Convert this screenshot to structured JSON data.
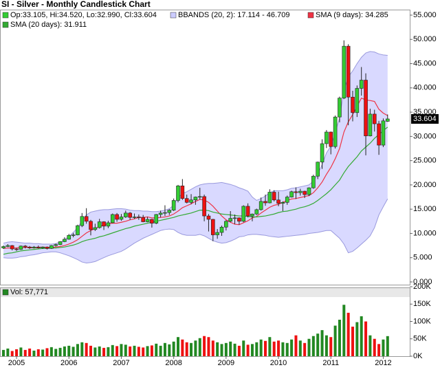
{
  "chart_data": {
    "type": "candlestick",
    "title": "SI - Silver - Monthly Candlestick Chart",
    "ohlc_label": "Op:33.105, Hi:34.520, Lo:32.990, Cl:33.604",
    "last_label": "33.604",
    "up_color": "#33cc33",
    "down_color": "#ee1111",
    "categories": [
      null,
      null,
      null,
      "2005",
      null,
      null,
      null,
      null,
      null,
      null,
      null,
      null,
      null,
      null,
      null,
      "2006",
      null,
      null,
      null,
      null,
      null,
      null,
      null,
      null,
      null,
      null,
      null,
      "2007",
      null,
      null,
      null,
      null,
      null,
      null,
      null,
      null,
      null,
      null,
      null,
      "2008",
      null,
      null,
      null,
      null,
      null,
      null,
      null,
      null,
      null,
      null,
      null,
      "2009",
      null,
      null,
      null,
      null,
      null,
      null,
      null,
      null,
      null,
      null,
      null,
      "2010",
      null,
      null,
      null,
      null,
      null,
      null,
      null,
      null,
      null,
      null,
      null,
      "2011",
      null,
      null,
      null,
      null,
      null,
      null,
      null,
      null,
      null,
      null,
      null,
      "2012",
      null
    ],
    "open": [
      7.0,
      7.3,
      7.5,
      6.8,
      6.7,
      7.4,
      7.2,
      7.0,
      7.2,
      7.0,
      7.2,
      6.9,
      7.5,
      7.7,
      8.3,
      8.8,
      9.6,
      9.7,
      11.6,
      13.5,
      12.5,
      10.8,
      11.2,
      12.4,
      11.5,
      12.2,
      13.9,
      12.9,
      13.4,
      14.2,
      13.3,
      13.4,
      13.3,
      12.4,
      12.9,
      12.1,
      13.9,
      14.2,
      14.3,
      14.8,
      16.8,
      19.8,
      17.2,
      16.4,
      16.9,
      17.5,
      17.6,
      13.6,
      12.9,
      9.7,
      10.2,
      11.3,
      12.5,
      13.1,
      13.2,
      12.5,
      15.6,
      13.6,
      14.0,
      14.9,
      16.6,
      16.3,
      18.5,
      16.9,
      16.2,
      16.4,
      17.5,
      18.6,
      18.4,
      18.7,
      18.0,
      19.4,
      21.8,
      24.7,
      28.5,
      30.9,
      27.9,
      34.0,
      37.9,
      48.6,
      38.1,
      34.9,
      39.9,
      41.6,
      30.1,
      34.6,
      32.6,
      28.2,
      33.105
    ],
    "high": [
      7.5,
      7.8,
      7.6,
      7.0,
      7.5,
      7.6,
      7.4,
      7.4,
      7.5,
      7.3,
      7.3,
      7.6,
      7.9,
      8.4,
      9.2,
      9.9,
      10.1,
      11.8,
      14.2,
      15.2,
      12.8,
      12.0,
      13.0,
      12.5,
      12.6,
      14.1,
      14.2,
      14.0,
      14.7,
      14.4,
      14.1,
      13.9,
      13.8,
      13.4,
      13.0,
      14.0,
      14.7,
      15.8,
      15.0,
      17.2,
      20.0,
      21.2,
      18.0,
      18.1,
      17.6,
      19.4,
      18.0,
      14.0,
      13.0,
      10.9,
      11.6,
      12.7,
      14.6,
      13.9,
      13.3,
      15.8,
      16.2,
      14.1,
      15.1,
      17.4,
      18.0,
      19.1,
      18.9,
      18.6,
      16.6,
      17.8,
      18.8,
      19.5,
      19.2,
      18.8,
      19.5,
      22.1,
      24.8,
      29.4,
      31.3,
      31.0,
      34.3,
      38.2,
      49.8,
      49.0,
      39.4,
      40.5,
      44.3,
      43.0,
      35.7,
      35.5,
      33.2,
      33.7,
      34.52
    ],
    "low": [
      6.8,
      7.2,
      6.5,
      6.4,
      6.6,
      6.9,
      6.8,
      6.9,
      6.9,
      6.8,
      6.7,
      6.8,
      7.3,
      7.6,
      8.2,
      8.7,
      9.2,
      9.6,
      11.3,
      12.0,
      9.6,
      10.5,
      11.0,
      10.7,
      11.1,
      12.1,
      12.4,
      12.6,
      13.2,
      12.8,
      13.0,
      12.8,
      12.3,
      12.3,
      11.2,
      11.9,
      13.3,
      13.6,
      13.8,
      14.6,
      16.4,
      16.9,
      16.2,
      16.0,
      15.9,
      17.0,
      12.5,
      10.4,
      8.4,
      8.9,
      9.5,
      10.6,
      12.3,
      11.9,
      11.8,
      12.3,
      13.3,
      12.5,
      13.8,
      14.7,
      15.7,
      16.2,
      16.6,
      15.6,
      14.6,
      15.9,
      17.4,
      17.1,
      17.8,
      17.3,
      17.7,
      19.2,
      21.2,
      23.3,
      27.6,
      26.3,
      27.5,
      32.9,
      37.7,
      32.3,
      33.1,
      34.0,
      38.4,
      26.1,
      30.0,
      31.0,
      26.2,
      27.8,
      32.99
    ],
    "close": [
      7.3,
      7.5,
      6.8,
      6.7,
      7.4,
      7.2,
      7.0,
      7.2,
      7.0,
      7.2,
      6.9,
      7.5,
      7.7,
      8.3,
      8.8,
      9.6,
      9.7,
      11.6,
      13.5,
      12.5,
      10.8,
      11.2,
      12.4,
      11.5,
      12.2,
      13.9,
      12.9,
      13.4,
      14.2,
      13.3,
      13.4,
      13.3,
      12.4,
      12.9,
      12.1,
      13.9,
      14.2,
      14.3,
      14.8,
      16.8,
      19.8,
      17.2,
      16.4,
      16.9,
      17.5,
      17.6,
      13.6,
      12.9,
      9.7,
      10.2,
      11.3,
      12.5,
      13.1,
      13.2,
      12.5,
      15.6,
      13.6,
      14.0,
      14.9,
      16.6,
      16.3,
      18.5,
      16.9,
      16.2,
      16.4,
      17.5,
      18.6,
      18.4,
      18.7,
      18.0,
      19.4,
      21.8,
      24.7,
      28.5,
      30.9,
      27.9,
      34.0,
      37.9,
      48.6,
      38.1,
      34.9,
      39.9,
      41.6,
      30.1,
      34.6,
      32.6,
      28.2,
      33.2,
      33.604
    ],
    "overlays": [
      {
        "name": "BBANDS (20, 2): 17.114 - 46.709",
        "color": "#ccccff",
        "line_color": "#9999dd",
        "upper": [
          8.0,
          8.2,
          8.3,
          8.2,
          8.1,
          8.0,
          8.0,
          7.9,
          7.9,
          7.8,
          7.8,
          7.8,
          7.9,
          8.2,
          8.7,
          9.4,
          10.2,
          11.2,
          12.6,
          13.8,
          14.4,
          14.6,
          14.8,
          14.9,
          14.9,
          15.0,
          15.1,
          15.1,
          15.0,
          14.8,
          14.7,
          14.7,
          14.6,
          14.6,
          14.5,
          14.5,
          14.6,
          14.8,
          15.1,
          15.8,
          17.4,
          18.2,
          18.6,
          19.1,
          19.6,
          20.0,
          20.2,
          20.3,
          20.3,
          20.4,
          20.5,
          20.3,
          20.1,
          19.8,
          19.4,
          19.1,
          18.7,
          17.5,
          16.8,
          17.2,
          17.7,
          18.4,
          18.8,
          18.8,
          18.8,
          19.0,
          19.3,
          19.4,
          19.6,
          19.8,
          20.0,
          20.8,
          22.2,
          24.2,
          26.6,
          28.0,
          30.8,
          33.8,
          39.5,
          42.3,
          43.5,
          45.0,
          46.3,
          47.2,
          47.5,
          47.4,
          47.0,
          46.8,
          46.709
        ],
        "lower": [
          5.0,
          4.9,
          4.9,
          5.0,
          5.2,
          5.3,
          5.5,
          5.6,
          5.8,
          6.0,
          6.1,
          6.2,
          6.2,
          6.0,
          5.7,
          5.4,
          5.0,
          4.6,
          4.1,
          3.9,
          4.0,
          4.2,
          4.6,
          5.0,
          5.4,
          5.7,
          6.0,
          6.3,
          6.8,
          7.4,
          8.0,
          8.5,
          9.0,
          9.4,
          9.8,
          10.2,
          10.6,
          10.8,
          10.9,
          10.8,
          10.2,
          9.8,
          9.6,
          9.6,
          9.6,
          9.8,
          9.5,
          9.0,
          8.5,
          8.2,
          8.0,
          8.1,
          8.4,
          8.8,
          9.3,
          9.4,
          9.7,
          9.8,
          9.8,
          9.7,
          9.6,
          9.4,
          9.3,
          9.2,
          9.3,
          9.4,
          9.5,
          9.6,
          9.7,
          9.8,
          10.0,
          10.1,
          10.2,
          10.4,
          10.6,
          10.6,
          9.8,
          9.0,
          7.8,
          6.0,
          6.3,
          7.0,
          7.8,
          8.6,
          9.5,
          11.2,
          13.8,
          15.5,
          17.114
        ]
      },
      {
        "name": "SMA (9 days): 34.285",
        "color": "#ee3344",
        "values": [
          6.9,
          7.0,
          7.0,
          7.0,
          7.1,
          7.1,
          7.1,
          7.0,
          7.1,
          7.2,
          7.1,
          7.1,
          7.2,
          7.3,
          7.5,
          7.8,
          8.2,
          8.7,
          9.4,
          10.1,
          10.6,
          11.0,
          11.4,
          11.7,
          12.0,
          12.1,
          12.1,
          12.3,
          12.5,
          12.8,
          13.0,
          13.3,
          13.3,
          13.4,
          13.2,
          13.2,
          13.3,
          13.4,
          13.6,
          14.0,
          14.6,
          15.3,
          15.7,
          16.1,
          16.6,
          17.0,
          16.9,
          16.4,
          15.6,
          14.6,
          13.6,
          12.8,
          12.3,
          11.9,
          11.8,
          12.2,
          12.6,
          13.2,
          13.5,
          14.2,
          14.8,
          15.4,
          15.8,
          16.0,
          16.4,
          16.8,
          17.1,
          17.2,
          17.4,
          17.6,
          17.8,
          18.4,
          19.4,
          20.6,
          22.2,
          23.6,
          25.4,
          27.5,
          30.9,
          33.0,
          34.5,
          36.2,
          37.9,
          37.5,
          37.4,
          37.2,
          35.6,
          34.8,
          34.285
        ]
      },
      {
        "name": "SMA (20 days): 31.911",
        "color": "#33aa33",
        "values": [
          5.7,
          5.9,
          6.0,
          6.2,
          6.4,
          6.5,
          6.6,
          6.7,
          6.8,
          6.9,
          6.9,
          7.0,
          7.0,
          7.1,
          7.2,
          7.4,
          7.6,
          7.9,
          8.3,
          8.6,
          8.8,
          9.0,
          9.3,
          9.5,
          9.8,
          10.1,
          10.4,
          10.7,
          11.0,
          11.2,
          11.5,
          11.7,
          11.9,
          12.1,
          12.3,
          12.5,
          12.7,
          12.9,
          13.1,
          13.3,
          13.6,
          13.8,
          14.0,
          14.2,
          14.5,
          14.8,
          14.8,
          14.7,
          14.4,
          14.2,
          14.0,
          13.9,
          13.8,
          13.7,
          13.6,
          13.6,
          13.5,
          13.4,
          13.4,
          13.5,
          13.6,
          13.8,
          14.0,
          14.3,
          14.5,
          14.6,
          14.8,
          15.0,
          15.3,
          15.5,
          15.8,
          16.2,
          16.8,
          17.5,
          18.2,
          19.0,
          20.0,
          21.0,
          22.5,
          23.8,
          24.8,
          25.8,
          27.0,
          27.8,
          28.6,
          29.6,
          30.4,
          31.2,
          31.911
        ]
      }
    ],
    "ylim": [
      0,
      55
    ],
    "yticks": [
      {
        "value": 0,
        "label": "0.000"
      },
      {
        "value": 5,
        "label": "5.000"
      },
      {
        "value": 10,
        "label": "10.000"
      },
      {
        "value": 15,
        "label": "15.000"
      },
      {
        "value": 20,
        "label": "20.000"
      },
      {
        "value": 25,
        "label": "25.000"
      },
      {
        "value": 30,
        "label": "30.000"
      },
      {
        "value": 35,
        "label": "35.000"
      },
      {
        "value": 40,
        "label": "40.000"
      },
      {
        "value": 45,
        "label": "45.000"
      },
      {
        "value": 50,
        "label": "50.000"
      },
      {
        "value": 55,
        "label": "55.000"
      }
    ],
    "volume": {
      "name": "Vol: 57,771",
      "color": "#228822",
      "values": [
        18000,
        22000,
        15000,
        20000,
        25000,
        18000,
        22000,
        16000,
        20000,
        19000,
        23000,
        26000,
        21000,
        24000,
        28000,
        30000,
        27000,
        35000,
        40000,
        38000,
        30000,
        25000,
        28000,
        24000,
        26000,
        32000,
        29000,
        35000,
        33000,
        28000,
        30000,
        27000,
        25000,
        29000,
        31000,
        36000,
        30000,
        38000,
        34000,
        42000,
        55000,
        48000,
        40000,
        38000,
        45000,
        52000,
        58000,
        55000,
        45000,
        40000,
        35000,
        38000,
        42000,
        36000,
        30000,
        45000,
        33000,
        35000,
        40000,
        48000,
        44000,
        55000,
        42000,
        45000,
        40000,
        38000,
        48000,
        60000,
        45000,
        38000,
        50000,
        58000,
        65000,
        75000,
        60000,
        55000,
        88000,
        105000,
        148000,
        125000,
        85000,
        98000,
        115000,
        100000,
        60000,
        50000,
        35000,
        48000,
        57771
      ],
      "ylim": [
        0,
        200000
      ],
      "yticks": [
        {
          "value": 0,
          "label": "0K"
        },
        {
          "value": 50000,
          "label": "50K"
        },
        {
          "value": 100000,
          "label": "100K"
        },
        {
          "value": 150000,
          "label": "150K"
        },
        {
          "value": 200000,
          "label": "200K"
        }
      ]
    }
  }
}
